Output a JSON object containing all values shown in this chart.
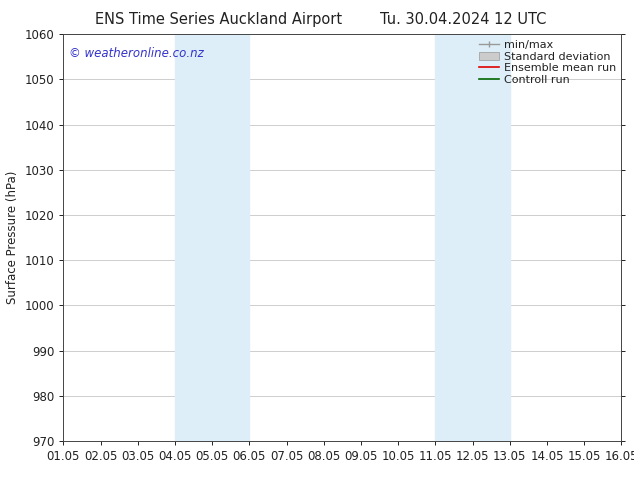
{
  "title_left": "ENS Time Series Auckland Airport",
  "title_right": "Tu. 30.04.2024 12 UTC",
  "ylabel": "Surface Pressure (hPa)",
  "xlim": [
    0,
    15
  ],
  "ylim": [
    970,
    1060
  ],
  "yticks": [
    970,
    980,
    990,
    1000,
    1010,
    1020,
    1030,
    1040,
    1050,
    1060
  ],
  "xtick_positions": [
    0,
    1,
    2,
    3,
    4,
    5,
    6,
    7,
    8,
    9,
    10,
    11,
    12,
    13,
    14,
    15
  ],
  "xtick_labels": [
    "01.05",
    "02.05",
    "03.05",
    "04.05",
    "05.05",
    "06.05",
    "07.05",
    "08.05",
    "09.05",
    "10.05",
    "11.05",
    "12.05",
    "13.05",
    "14.05",
    "15.05",
    "16.05"
  ],
  "shaded_regions": [
    {
      "xmin": 3.0,
      "xmax": 5.0,
      "color": "#ddeef8"
    },
    {
      "xmin": 10.0,
      "xmax": 12.0,
      "color": "#ddeef8"
    }
  ],
  "watermark": "© weatheronline.co.nz",
  "watermark_color": "#3333cc",
  "background_color": "#ffffff",
  "grid_color": "#bbbbbb",
  "spine_color": "#444444",
  "tick_color": "#222222",
  "label_color": "#222222",
  "font_size": 8.5,
  "title_font_size": 10.5
}
